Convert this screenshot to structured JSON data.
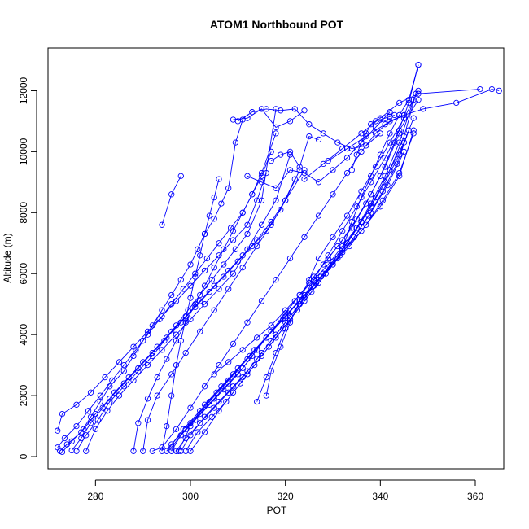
{
  "chart_data": {
    "type": "line",
    "title": "ATOM1 Northbound POT",
    "xlabel": "POT",
    "ylabel": "Altitude (m)",
    "xlim": [
      270,
      366
    ],
    "ylim": [
      -400,
      13400
    ],
    "x_ticks": [
      280,
      300,
      320,
      340,
      360
    ],
    "x_tick_labels": [
      "280",
      "300",
      "320",
      "340",
      "360"
    ],
    "y_ticks": [
      0,
      2000,
      4000,
      6000,
      8000,
      10000,
      12000
    ],
    "y_tick_labels": [
      "0",
      "2000",
      "4000",
      "6000",
      "8000",
      "10000",
      "12000"
    ],
    "grid": false,
    "legend": "none",
    "marker": "open-circle",
    "series_color": "#0000ff",
    "series": [
      {
        "x": [
          272.5,
          274,
          277,
          279,
          281,
          283,
          286,
          288,
          290,
          292,
          294,
          296,
          298,
          300,
          301.5,
          303,
          305,
          306.5,
          308,
          309.5,
          311
        ],
        "y": [
          180,
          400,
          800,
          1300,
          1800,
          2300,
          2800,
          3300,
          3800,
          4300,
          4800,
          5300,
          5800,
          6300,
          6800,
          7300,
          7800,
          8300,
          8800,
          10300,
          11050
        ]
      },
      {
        "x": [
          272,
          273.5,
          276,
          278.5,
          281,
          283.5,
          286,
          288.5,
          291,
          293.5,
          296,
          298.5,
          301,
          303.5,
          306,
          308.5,
          311,
          313,
          315,
          317
        ],
        "y": [
          300,
          600,
          1000,
          1500,
          2000,
          2500,
          3000,
          3500,
          4000,
          4500,
          5000,
          5500,
          6000,
          6500,
          7000,
          7500,
          8000,
          8600,
          9200,
          10000
        ]
      },
      {
        "x": [
          273,
          275,
          277.5,
          280,
          283,
          286,
          289,
          292,
          295,
          298,
          301,
          304,
          307,
          310,
          313,
          316,
          319,
          322
        ],
        "y": [
          150,
          500,
          900,
          1400,
          1900,
          2400,
          2900,
          3400,
          3900,
          4400,
          4900,
          5400,
          5900,
          6400,
          6900,
          7400,
          8100,
          9100
        ]
      },
      {
        "x": [
          275,
          277,
          279,
          281.5,
          284,
          287,
          290,
          293,
          296,
          299,
          302,
          305,
          308,
          311,
          314,
          317,
          320,
          324
        ],
        "y": [
          200,
          600,
          1100,
          1600,
          2100,
          2600,
          3100,
          3600,
          4100,
          4600,
          5100,
          5600,
          6100,
          6600,
          7100,
          7700,
          8400,
          9400
        ]
      },
      {
        "x": [
          276,
          278,
          280.5,
          283,
          286,
          289,
          292,
          294.5,
          297,
          299.5,
          302,
          304.5,
          307,
          309.5,
          312,
          315,
          318
        ],
        "y": [
          180,
          700,
          1200,
          1800,
          2300,
          2800,
          3300,
          3800,
          4300,
          4800,
          5300,
          5800,
          6300,
          6800,
          7300,
          8400,
          11400
        ]
      },
      {
        "x": [
          272,
          273,
          276,
          279,
          282,
          285,
          288,
          291,
          294,
          297,
          300,
          303,
          306,
          309,
          312,
          314,
          316
        ],
        "y": [
          850,
          1400,
          1700,
          2100,
          2600,
          3100,
          3600,
          4100,
          4600,
          5100,
          5600,
          6100,
          6600,
          7100,
          7600,
          8400,
          9300
        ]
      },
      {
        "x": [
          278,
          280,
          282.5,
          285,
          288,
          291,
          294,
          297,
          300,
          303,
          306,
          309,
          312,
          315,
          318,
          321
        ],
        "y": [
          180,
          900,
          1500,
          2000,
          2500,
          3000,
          3500,
          4000,
          4500,
          5000,
          5500,
          6000,
          6800,
          7600,
          8400,
          9900
        ]
      },
      {
        "x": [
          288,
          289,
          291,
          293,
          295,
          297,
          299,
          301,
          303,
          305,
          307,
          309,
          311,
          313,
          315,
          318
        ],
        "y": [
          180,
          1100,
          1900,
          2600,
          3200,
          3800,
          4400,
          5000,
          5600,
          6200,
          6800,
          7400,
          8000,
          8600,
          9300,
          10600
        ]
      },
      {
        "x": [
          294,
          295,
          296,
          297,
          298,
          299,
          300,
          301,
          302,
          303,
          304,
          305,
          306
        ],
        "y": [
          180,
          1000,
          2000,
          3000,
          3800,
          4500,
          5200,
          5900,
          6600,
          7300,
          7900,
          8500,
          9100
        ]
      },
      {
        "x": [
          294,
          296,
          298
        ],
        "y": [
          7600,
          8600,
          9200
        ]
      },
      {
        "x": [
          296,
          298,
          301,
          304,
          307,
          310,
          313,
          316,
          319,
          322,
          325,
          328,
          331,
          334,
          337,
          340,
          343,
          346,
          348
        ],
        "y": [
          180,
          700,
          1200,
          1700,
          2200,
          2700,
          3300,
          3900,
          4500,
          5100,
          5700,
          6300,
          6900,
          7500,
          8300,
          9200,
          10300,
          11600,
          12850
        ]
      },
      {
        "x": [
          297,
          299,
          302,
          305,
          308,
          311,
          314,
          317,
          320,
          323,
          326,
          329,
          332,
          335,
          338,
          341,
          344,
          347
        ],
        "y": [
          180,
          600,
          1100,
          1600,
          2100,
          2600,
          3200,
          3800,
          4400,
          5000,
          5600,
          6200,
          6800,
          7500,
          8300,
          9200,
          10300,
          11700
        ]
      },
      {
        "x": [
          298,
          300,
          303,
          306,
          309,
          312,
          315,
          318,
          321,
          324,
          327,
          330,
          333,
          336,
          339,
          342,
          345,
          347.5
        ],
        "y": [
          180,
          700,
          1300,
          1800,
          2300,
          2800,
          3400,
          4000,
          4600,
          5200,
          5800,
          6400,
          7000,
          7700,
          8500,
          9400,
          10500,
          11900
        ]
      },
      {
        "x": [
          299,
          301.5,
          304.5,
          307.5,
          310.5,
          313.5,
          316.5,
          319.5,
          322.5,
          325.5,
          328.5,
          331.5,
          334.5,
          337.5,
          340.5,
          343.5,
          346
        ],
        "y": [
          180,
          800,
          1300,
          1800,
          2400,
          3000,
          3600,
          4200,
          4800,
          5400,
          6000,
          6600,
          7200,
          7900,
          8700,
          9600,
          10700
        ]
      },
      {
        "x": [
          296,
          299,
          302,
          305,
          308,
          311,
          314,
          317,
          320,
          323,
          326,
          329,
          332,
          335,
          338,
          341,
          344
        ],
        "y": [
          400,
          900,
          1400,
          1900,
          2400,
          2900,
          3500,
          4100,
          4700,
          5300,
          5900,
          6500,
          7100,
          7800,
          8600,
          9500,
          10600
        ]
      },
      {
        "x": [
          295,
          298.5,
          302,
          305.5,
          309,
          312.5,
          316,
          319.5,
          323,
          326.5,
          330,
          333.5,
          337,
          340.5,
          344,
          347
        ],
        "y": [
          180,
          900,
          1500,
          2100,
          2700,
          3300,
          3900,
          4500,
          5100,
          5700,
          6300,
          6900,
          7600,
          8400,
          9300,
          10600
        ]
      },
      {
        "x": [
          297.5,
          300,
          303,
          306.5,
          310,
          313.5,
          317,
          320.5,
          324,
          327.5,
          331,
          334.5,
          338,
          341.5,
          345
        ],
        "y": [
          180,
          1000,
          1700,
          2300,
          2900,
          3500,
          4100,
          4700,
          5300,
          5900,
          6500,
          7200,
          8000,
          8900,
          10000
        ]
      },
      {
        "x": [
          300,
          303,
          306,
          309,
          312,
          315,
          318,
          321,
          324,
          327,
          330,
          333,
          336,
          339,
          342,
          345
        ],
        "y": [
          180,
          800,
          1500,
          2100,
          2700,
          3300,
          3900,
          4500,
          5100,
          5700,
          6300,
          7000,
          7700,
          8500,
          9400,
          10300
        ]
      },
      {
        "x": [
          296,
          300,
          304,
          308,
          312,
          316,
          320,
          324,
          328,
          332,
          336,
          340,
          344,
          347
        ],
        "y": [
          300,
          1100,
          1800,
          2500,
          3200,
          3900,
          4600,
          5300,
          6000,
          6700,
          7400,
          8200,
          9200,
          10700
        ]
      },
      {
        "x": [
          314,
          316,
          318,
          320,
          323,
          326,
          329,
          332,
          335,
          338,
          341,
          344,
          348
        ],
        "y": [
          1800,
          2600,
          3400,
          4200,
          5000,
          5800,
          6600,
          7400,
          8200,
          9000,
          9800,
          10700,
          11700
        ]
      },
      {
        "x": [
          316,
          317,
          319,
          321,
          323,
          325,
          327,
          330,
          333,
          336,
          339,
          342,
          345,
          348
        ],
        "y": [
          2000,
          2800,
          3600,
          4400,
          5100,
          5800,
          6500,
          7200,
          7900,
          8700,
          9500,
          10300,
          11100,
          12000
        ]
      },
      {
        "x": [
          332,
          334,
          336,
          338,
          340,
          342,
          344,
          346,
          348
        ],
        "y": [
          6800,
          7700,
          8500,
          9200,
          9900,
          10600,
          11200,
          11700,
          12850
        ]
      },
      {
        "x": [
          334,
          335,
          336,
          337,
          338,
          339,
          340,
          341,
          342,
          343
        ],
        "y": [
          9400,
          9900,
          10300,
          10600,
          10900,
          11000,
          11050,
          11100,
          11150,
          11200
        ]
      },
      {
        "x": [
          324,
          328,
          332,
          336,
          340,
          344,
          348,
          361
        ],
        "y": [
          9100,
          9600,
          10100,
          10600,
          11100,
          11600,
          11900,
          12050
        ]
      },
      {
        "x": [
          329,
          333,
          337,
          341,
          345,
          349,
          356,
          363.5,
          365
        ],
        "y": [
          9700,
          10100,
          10500,
          10900,
          11200,
          11400,
          11600,
          12050,
          12000
        ]
      },
      {
        "x": [
          310,
          313,
          316,
          319,
          322,
          325,
          328,
          331,
          334,
          337,
          340
        ],
        "y": [
          11000,
          11300,
          11400,
          11350,
          11400,
          10900,
          10600,
          10300,
          10100,
          10200,
          10600
        ]
      },
      {
        "x": [
          309,
          312,
          315,
          318,
          321,
          324
        ],
        "y": [
          11050,
          11100,
          11400,
          10800,
          11000,
          11350
        ]
      },
      {
        "x": [
          312,
          315,
          318,
          321,
          324,
          327,
          330,
          333,
          336,
          339,
          342
        ],
        "y": [
          9200,
          9000,
          8800,
          9400,
          9300,
          9000,
          9400,
          9800,
          10300,
          10800,
          11300
        ]
      },
      {
        "x": [
          317,
          319,
          321,
          323,
          325,
          327
        ],
        "y": [
          9700,
          9900,
          10000,
          9500,
          10500,
          10400
        ]
      },
      {
        "x": [
          305,
          308,
          311,
          314,
          317,
          320,
          323,
          326,
          329,
          332,
          335,
          338,
          341,
          344,
          347
        ],
        "y": [
          2700,
          3100,
          3500,
          3900,
          4300,
          4800,
          5300,
          5800,
          6300,
          6900,
          7500,
          8200,
          9000,
          9900,
          11100
        ]
      },
      {
        "x": [
          292,
          294,
          297,
          300,
          303,
          306,
          309,
          312,
          315,
          318,
          321,
          324,
          327,
          330,
          333,
          336,
          339,
          342,
          345
        ],
        "y": [
          180,
          300,
          900,
          1600,
          2300,
          3000,
          3700,
          4400,
          5100,
          5800,
          6500,
          7200,
          7900,
          8600,
          9300,
          10000,
          10600,
          11000,
          11200
        ]
      },
      {
        "x": [
          290,
          291,
          293,
          296,
          299,
          302,
          305,
          308,
          311,
          314,
          317,
          320,
          323
        ],
        "y": [
          180,
          1200,
          2000,
          2700,
          3400,
          4100,
          4800,
          5500,
          6200,
          6900,
          7600,
          8400,
          9400
        ]
      }
    ]
  }
}
